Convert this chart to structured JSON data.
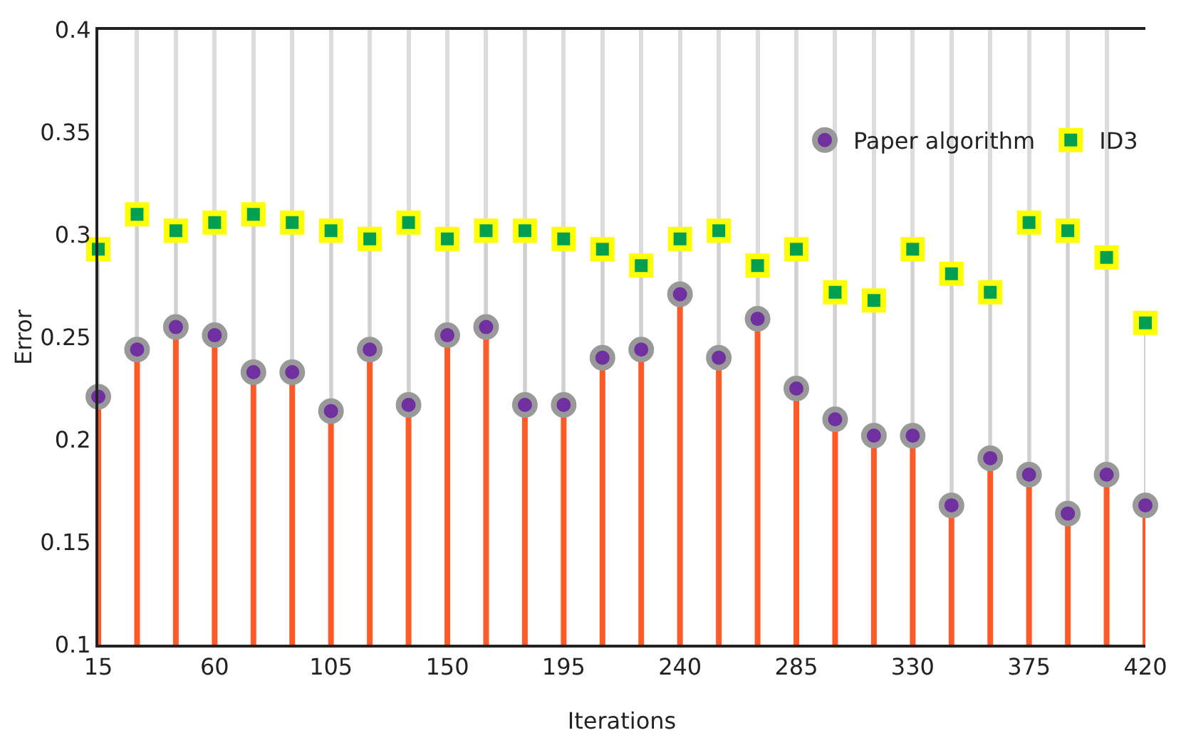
{
  "chart_data": {
    "type": "lollipop",
    "xlabel": "Iterations",
    "ylabel": "Error",
    "x": [
      15,
      30,
      45,
      60,
      75,
      90,
      105,
      120,
      135,
      150,
      165,
      180,
      195,
      210,
      225,
      240,
      255,
      270,
      285,
      300,
      315,
      330,
      345,
      360,
      375,
      390,
      405,
      420
    ],
    "xlim": [
      15,
      420
    ],
    "xticks": [
      15,
      60,
      105,
      150,
      195,
      240,
      285,
      330,
      375,
      420
    ],
    "ylim": [
      0.1,
      0.4
    ],
    "yticks": [
      0.1,
      0.15,
      0.2,
      0.25,
      0.3,
      0.35,
      0.4
    ],
    "grid": "x",
    "legend": "top right",
    "series": [
      {
        "name": "ID3",
        "color": "#00a050",
        "marker": "square",
        "values": [
          0.293,
          0.31,
          0.302,
          0.306,
          0.31,
          0.306,
          0.302,
          0.298,
          0.306,
          0.298,
          0.302,
          0.302,
          0.298,
          0.293,
          0.285,
          0.298,
          0.302,
          0.285,
          0.293,
          0.272,
          0.268,
          0.293,
          0.281,
          0.272,
          0.306,
          0.302,
          0.289,
          0.257
        ]
      },
      {
        "name": "Paper algorithm",
        "color": "#7030a0",
        "marker": "circle",
        "values": [
          0.221,
          0.244,
          0.255,
          0.251,
          0.233,
          0.233,
          0.214,
          0.244,
          0.217,
          0.251,
          0.255,
          0.217,
          0.217,
          0.24,
          0.244,
          0.271,
          0.24,
          0.259,
          0.225,
          0.21,
          0.202,
          0.202,
          0.168,
          0.191,
          0.183,
          0.164,
          0.183,
          0.168
        ]
      }
    ]
  }
}
